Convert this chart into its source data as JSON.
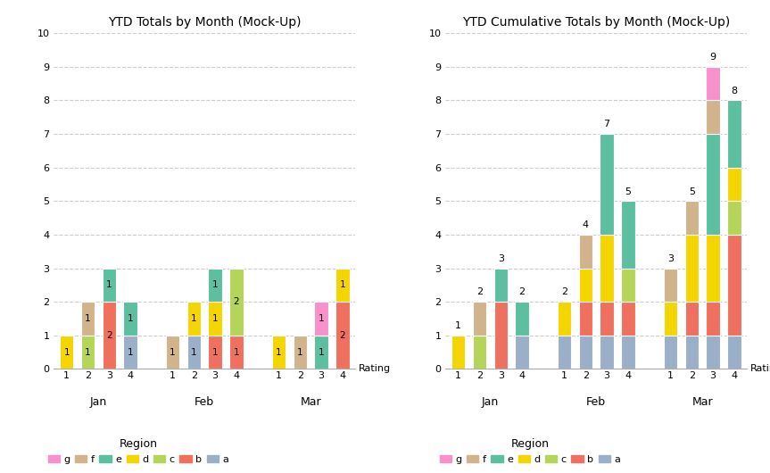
{
  "title_left": "YTD Totals by Month (Mock-Up)",
  "title_right": "YTD Cumulative Totals by Month (Mock-Up)",
  "xlabel": "Rating",
  "months": [
    "Jan",
    "Feb",
    "Mar"
  ],
  "ratings": [
    1,
    2,
    3,
    4
  ],
  "regions_display": [
    "g",
    "f",
    "e",
    "d",
    "c",
    "b",
    "a"
  ],
  "regions_stack_order": [
    "a",
    "b",
    "c",
    "d",
    "e",
    "f",
    "g"
  ],
  "region_colors": {
    "g": "#f890cc",
    "f": "#d2b48c",
    "e": "#5bbfa0",
    "d": "#f5d500",
    "c": "#b5d45a",
    "b": "#f07060",
    "a": "#9ab0c8"
  },
  "left_data": {
    "Jan": {
      "1": {
        "d": 1
      },
      "2": {
        "f": 1,
        "c": 1
      },
      "3": {
        "e": 1,
        "b": 2
      },
      "4": {
        "e": 1,
        "a": 1
      }
    },
    "Feb": {
      "1": {
        "f": 1
      },
      "2": {
        "d": 1,
        "a": 1
      },
      "3": {
        "e": 1,
        "d": 1,
        "b": 1
      },
      "4": {
        "c": 2,
        "b": 1
      }
    },
    "Mar": {
      "1": {
        "d": 1
      },
      "2": {
        "f": 1
      },
      "3": {
        "e": 1,
        "g": 1
      },
      "4": {
        "b": 2,
        "d": 1
      }
    }
  },
  "right_data": {
    "Jan": {
      "1": {
        "d": 1
      },
      "2": {
        "c": 1,
        "f": 1
      },
      "3": {
        "b": 2,
        "e": 1
      },
      "4": {
        "a": 1,
        "e": 1
      }
    },
    "Feb": {
      "1": {
        "a": 1,
        "d": 1
      },
      "2": {
        "a": 1,
        "b": 1,
        "d": 1,
        "f": 1
      },
      "3": {
        "a": 1,
        "b": 1,
        "d": 2,
        "e": 3
      },
      "4": {
        "a": 1,
        "b": 1,
        "c": 1,
        "e": 2
      }
    },
    "Mar": {
      "1": {
        "a": 1,
        "d": 1,
        "f": 1
      },
      "2": {
        "a": 1,
        "b": 1,
        "d": 2,
        "f": 1
      },
      "3": {
        "a": 1,
        "b": 1,
        "d": 2,
        "e": 3,
        "f": 1,
        "g": 1
      },
      "4": {
        "a": 1,
        "b": 3,
        "c": 1,
        "d": 1,
        "e": 2
      }
    }
  }
}
